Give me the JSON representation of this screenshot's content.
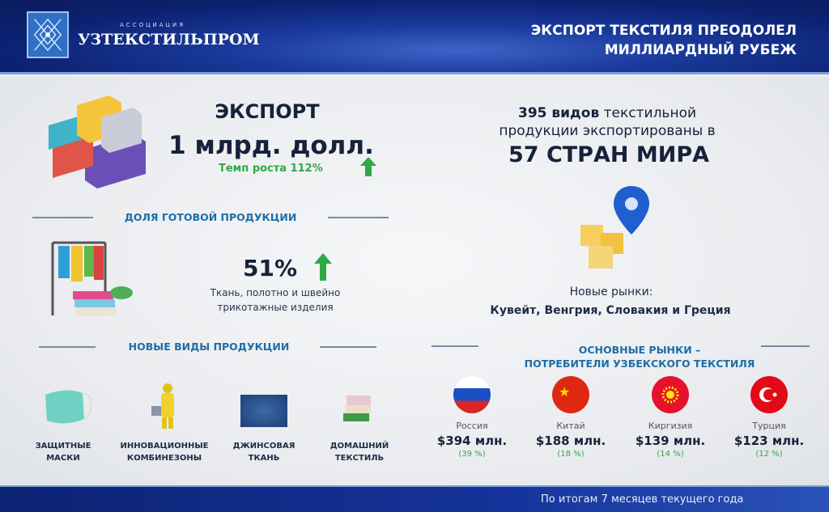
{
  "header": {
    "logo_small": "АССОЦИАЦИЯ",
    "logo_name": "УЗТЕКСТИЛЬПРОМ",
    "title_line1": "ЭКСПОРТ ТЕКСТИЛЯ ПРЕОДОЛЕЛ",
    "title_line2": "МИЛЛИАРДНЫЙ РУБЕЖ"
  },
  "export": {
    "label": "ЭКСПОРТ",
    "value": "1 млрд. долл.",
    "growth": "Темп роста 112%"
  },
  "share": {
    "section": "ДОЛЯ ГОТОВОЙ ПРОДУКЦИИ",
    "value": "51%",
    "desc1": "Ткань, полотно и швейно",
    "desc2": "трикотажные изделия"
  },
  "new_products": {
    "section": "НОВЫЕ ВИДЫ ПРОДУКЦИИ",
    "items": [
      {
        "l1": "ЗАЩИТНЫЕ",
        "l2": "МАСКИ"
      },
      {
        "l1": "ИННОВАЦИОННЫЕ",
        "l2": "КОМБИНЕЗОНЫ"
      },
      {
        "l1": "ДЖИНСОВАЯ",
        "l2": "ТКАНЬ"
      },
      {
        "l1": "ДОМАШНИЙ",
        "l2": "ТЕКСТИЛЬ"
      }
    ]
  },
  "countries": {
    "count_bold": "395 видов",
    "line1_rest": " текстильной",
    "line2": "продукции экспортированы в",
    "big": "57 СТРАН МИРА"
  },
  "new_markets": {
    "label": "Новые рынки:",
    "list": "Кувейт, Венгрия, Словакия и Греция"
  },
  "main_markets": {
    "section1": "ОСНОВНЫЕ РЫНКИ –",
    "section2": "ПОТРЕБИТЕЛИ УЗБЕКСКОГО ТЕКСТИЛЯ",
    "items": [
      {
        "name": "Россия",
        "value": "$394 млн.",
        "share": "(39 %)"
      },
      {
        "name": "Китай",
        "value": "$188 млн.",
        "share": "(18 %)"
      },
      {
        "name": "Киргизия",
        "value": "$139 млн.",
        "share": "(14 %)"
      },
      {
        "name": "Турция",
        "value": "$123 млн.",
        "share": "(12 %)"
      }
    ]
  },
  "footer": {
    "note": "По итогам 7 месяцев текущего года"
  },
  "colors": {
    "header_blue": "#1a3a9c",
    "section_blue": "#1d6ea8",
    "green": "#2fa846"
  }
}
